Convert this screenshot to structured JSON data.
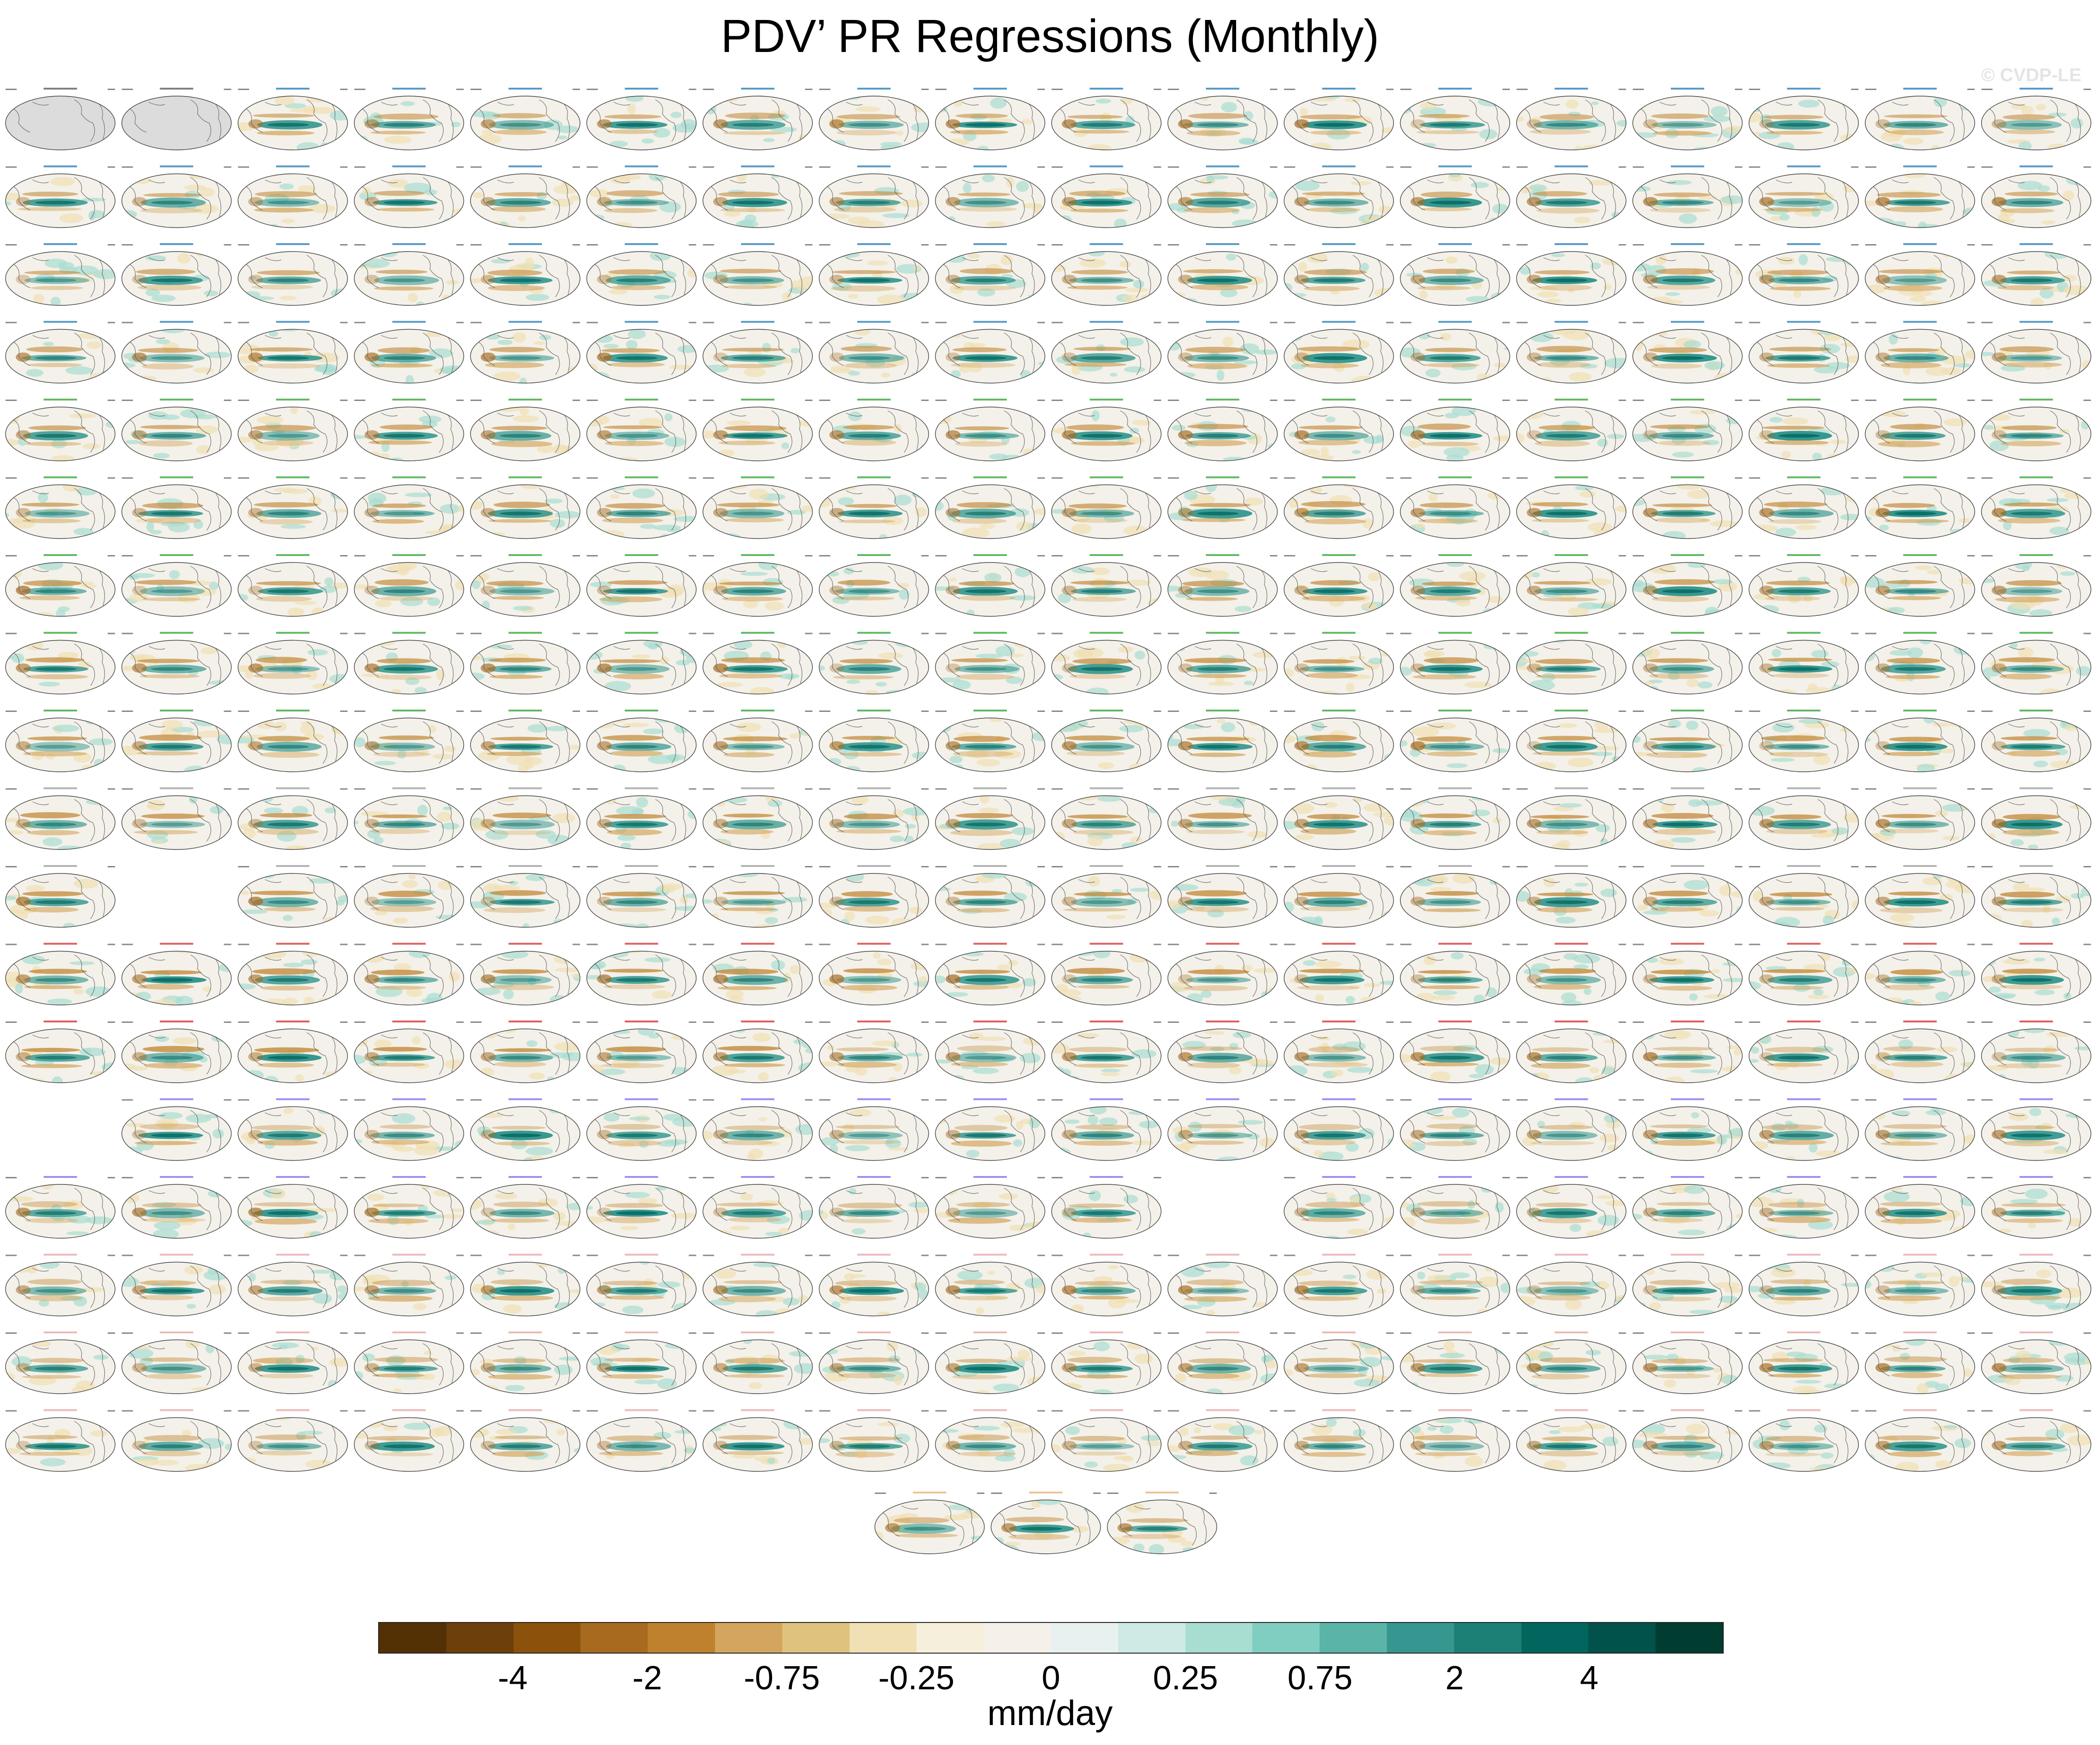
{
  "title": "PDV’ PR Regressions (Monthly)",
  "watermark": "© CVDP-LE",
  "units": "mm/day",
  "colorbar": {
    "colors": [
      "#543005",
      "#6d3f0b",
      "#8c510a",
      "#a76a1f",
      "#bf812d",
      "#d4a55e",
      "#dfc27d",
      "#f0e0b4",
      "#f6efdc",
      "#f5f1ea",
      "#e8f1ef",
      "#cdeae4",
      "#a8ddd2",
      "#80cdc1",
      "#5ab4a8",
      "#35978f",
      "#1d8076",
      "#01665e",
      "#01524a",
      "#003c30"
    ],
    "labels": [
      "-4",
      "-2",
      "-0.75",
      "-0.25",
      "0",
      "0.25",
      "0.75",
      "2",
      "4"
    ]
  },
  "chart_data": {
    "type": "map-grid",
    "title": "PDV’ PR Regressions (Monthly)",
    "variable": "PR",
    "units": "mm/day",
    "colorbar_ticks": [
      "-4",
      "-2",
      "-0.75",
      "-0.25",
      "0",
      "0.25",
      "0.75",
      "2",
      "4"
    ],
    "legend_placement": "bottom",
    "rows": [
      {
        "occupied": [
          1,
          1,
          1,
          1,
          1,
          1,
          1,
          1,
          1,
          1,
          1,
          1,
          1,
          1,
          1,
          1,
          1,
          1
        ],
        "tint": "#1f78b4"
      },
      {
        "occupied": [
          1,
          1,
          1,
          1,
          1,
          1,
          1,
          1,
          1,
          1,
          1,
          1,
          1,
          1,
          1,
          1,
          1,
          1
        ],
        "tint": "#1f78b4"
      },
      {
        "occupied": [
          1,
          1,
          1,
          1,
          1,
          1,
          1,
          1,
          1,
          1,
          1,
          1,
          1,
          1,
          1,
          1,
          1,
          1
        ],
        "tint": "#1f78b4"
      },
      {
        "occupied": [
          1,
          1,
          1,
          1,
          1,
          1,
          1,
          1,
          1,
          1,
          1,
          1,
          1,
          1,
          1,
          1,
          1,
          1
        ],
        "tint": "#1f78b4"
      },
      {
        "occupied": [
          1,
          1,
          1,
          1,
          1,
          1,
          1,
          1,
          1,
          1,
          1,
          1,
          1,
          1,
          1,
          1,
          1,
          1
        ],
        "tint": "#2ca02c"
      },
      {
        "occupied": [
          1,
          1,
          1,
          1,
          1,
          1,
          1,
          1,
          1,
          1,
          1,
          1,
          1,
          1,
          1,
          1,
          1,
          1
        ],
        "tint": "#2ca02c"
      },
      {
        "occupied": [
          1,
          1,
          1,
          1,
          1,
          1,
          1,
          1,
          1,
          1,
          1,
          1,
          1,
          1,
          1,
          1,
          1,
          1
        ],
        "tint": "#2ca02c"
      },
      {
        "occupied": [
          1,
          1,
          1,
          1,
          1,
          1,
          1,
          1,
          1,
          1,
          1,
          1,
          1,
          1,
          1,
          1,
          1,
          1
        ],
        "tint": "#2ca02c"
      },
      {
        "occupied": [
          1,
          1,
          1,
          1,
          1,
          1,
          1,
          1,
          1,
          1,
          1,
          1,
          1,
          1,
          1,
          1,
          1,
          1
        ],
        "tint": "#2ca02c"
      },
      {
        "occupied": [
          1,
          1,
          1,
          1,
          1,
          1,
          1,
          1,
          1,
          1,
          1,
          1,
          1,
          1,
          1,
          1,
          1,
          1
        ],
        "tint": "#999999"
      },
      {
        "occupied": [
          1,
          0,
          1,
          1,
          1,
          1,
          1,
          1,
          1,
          1,
          1,
          1,
          1,
          1,
          1,
          1,
          1,
          1
        ],
        "tint": "#999999"
      },
      {
        "occupied": [
          1,
          1,
          1,
          1,
          1,
          1,
          1,
          1,
          1,
          1,
          1,
          1,
          1,
          1,
          1,
          1,
          1,
          1
        ],
        "tint": "#d62728"
      },
      {
        "occupied": [
          1,
          1,
          1,
          1,
          1,
          1,
          1,
          1,
          1,
          1,
          1,
          1,
          1,
          1,
          1,
          1,
          1,
          1
        ],
        "tint": "#d62728"
      },
      {
        "occupied": [
          0,
          1,
          1,
          1,
          1,
          1,
          1,
          1,
          1,
          1,
          1,
          1,
          1,
          1,
          1,
          1,
          1,
          1
        ],
        "tint": "#7b68ee"
      },
      {
        "occupied": [
          1,
          1,
          1,
          1,
          1,
          1,
          1,
          1,
          1,
          1,
          0,
          1,
          1,
          1,
          1,
          1,
          1,
          1
        ],
        "tint": "#7b68ee"
      },
      {
        "occupied": [
          1,
          1,
          1,
          1,
          1,
          1,
          1,
          1,
          1,
          1,
          1,
          1,
          1,
          1,
          1,
          1,
          1,
          1
        ],
        "tint": "#e8a0a0"
      },
      {
        "occupied": [
          1,
          1,
          1,
          1,
          1,
          1,
          1,
          1,
          1,
          1,
          1,
          1,
          1,
          1,
          1,
          1,
          1,
          1
        ],
        "tint": "#e8a0a0"
      },
      {
        "occupied": [
          1,
          1,
          1,
          1,
          1,
          1,
          1,
          1,
          1,
          1,
          1,
          1,
          1,
          1,
          1,
          1,
          1,
          1
        ],
        "tint": "#e8a0a0"
      }
    ],
    "extra_row": {
      "occupied": [
        0,
        0,
        0,
        0,
        0,
        0,
        0,
        1,
        1,
        1,
        0,
        0,
        0,
        0,
        0,
        0,
        0,
        0
      ],
      "tint": "#e8b070"
    }
  }
}
